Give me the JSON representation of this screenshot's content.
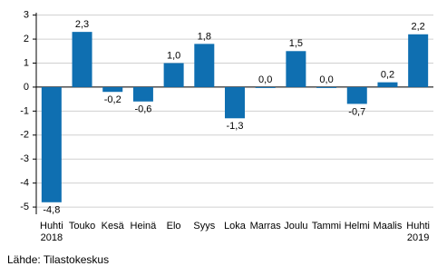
{
  "chart_data": {
    "type": "bar",
    "categories": [
      "Huhti\n2018",
      "Touko",
      "Kesä",
      "Heinä",
      "Elo",
      "Syys",
      "Loka",
      "Marras",
      "Joulu",
      "Tammi",
      "Helmi",
      "Maalis",
      "Huhti\n2019"
    ],
    "values": [
      -4.8,
      2.3,
      -0.2,
      -0.6,
      1.0,
      1.8,
      -1.3,
      0.0,
      1.5,
      0.0,
      -0.7,
      0.2,
      2.2
    ],
    "value_labels": [
      "-4,8",
      "2,3",
      "-0,2",
      "-0,6",
      "1,0",
      "1,8",
      "-1,3",
      "0,0",
      "1,5",
      "0,0",
      "-0,7",
      "0,2",
      "2,2"
    ],
    "color": "#0f6fb1",
    "ylim": [
      -5.3,
      3.1
    ],
    "yticks": [
      -5,
      -4,
      -3,
      -2,
      -1,
      0,
      1,
      2,
      3
    ],
    "grid": true,
    "source": "Lähde: Tilastokeskus"
  }
}
